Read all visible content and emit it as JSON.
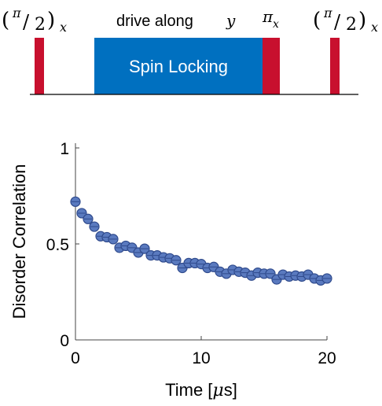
{
  "pulse_sequence": {
    "pulse1_label": {
      "open": "(",
      "num": "π",
      "slash": "/",
      "den": "2",
      "close": ")",
      "sub": "x"
    },
    "drive_label_text": "drive along",
    "drive_label_var": "y",
    "pi_pulse_label": {
      "sym": "π",
      "sub": "x"
    },
    "pulse3_label": {
      "open": "(",
      "num": "π",
      "slash": "/",
      "den": "2",
      "close": ")",
      "sub": "x"
    },
    "spin_lock_label": "Spin Locking",
    "colors": {
      "pulse": "#c8102e",
      "spin_lock": "#0070c0",
      "spin_lock_text": "#ffffff"
    }
  },
  "chart_data": {
    "type": "scatter",
    "xlabel_main": "Time [",
    "xlabel_unit": "μ",
    "xlabel_end": "s]",
    "ylabel": "Disorder Correlation",
    "xlim": [
      0,
      20
    ],
    "ylim": [
      0,
      1
    ],
    "xticks": [
      0,
      10,
      20
    ],
    "xtick_labels": [
      "0",
      "10",
      "20"
    ],
    "yticks": [
      0,
      0.5,
      1
    ],
    "ytick_labels": [
      "0",
      "0.5",
      "1"
    ],
    "marker_color": "#5a7abf",
    "marker_edge": "#2f4a8c",
    "series": [
      {
        "x": [
          0.0,
          0.5,
          1.0,
          1.5,
          2.0,
          2.5,
          3.0,
          3.5,
          4.0,
          4.5,
          5.0,
          5.5,
          6.0,
          6.5,
          7.0,
          7.5,
          8.0,
          8.5,
          9.0,
          9.5,
          10.0,
          10.5,
          11.0,
          11.5,
          12.0,
          12.5,
          13.0,
          13.5,
          14.0,
          14.5,
          15.0,
          15.5,
          16.0,
          16.5,
          17.0,
          17.5,
          18.0,
          18.5,
          19.0,
          19.5,
          20.0
        ],
        "y": [
          0.72,
          0.66,
          0.63,
          0.59,
          0.54,
          0.535,
          0.525,
          0.48,
          0.49,
          0.48,
          0.455,
          0.475,
          0.44,
          0.44,
          0.43,
          0.425,
          0.415,
          0.375,
          0.4,
          0.4,
          0.395,
          0.375,
          0.38,
          0.355,
          0.345,
          0.365,
          0.355,
          0.35,
          0.335,
          0.35,
          0.345,
          0.345,
          0.315,
          0.34,
          0.33,
          0.335,
          0.33,
          0.34,
          0.32,
          0.31,
          0.32
        ]
      }
    ]
  }
}
